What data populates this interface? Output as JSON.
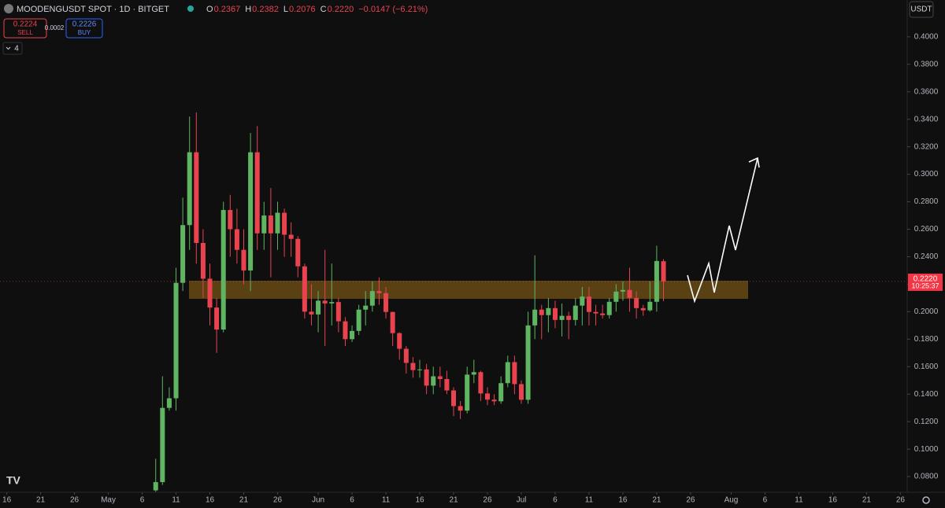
{
  "header": {
    "symbol": "MOODENGUSDT SPOT · 1D · BITGET",
    "ohlc": [
      {
        "key": "O",
        "value": "0.2367"
      },
      {
        "key": "H",
        "value": "0.2382"
      },
      {
        "key": "L",
        "value": "0.2076"
      },
      {
        "key": "C",
        "value": "0.2220"
      }
    ],
    "change": "−0.0147 (−6.21%)",
    "sell_price": "0.2224",
    "sell_label": "SELL",
    "spread": "0.0002",
    "buy_price": "0.2226",
    "buy_label": "BUY",
    "indicators": "4",
    "currency": "USDT"
  },
  "chart_data": {
    "type": "candlestick",
    "up_color": "#5fb562",
    "down_color": "#e8434f",
    "grid": false,
    "x": [
      "05-08",
      "05-09",
      "05-10",
      "05-11",
      "05-12",
      "05-13",
      "05-14",
      "05-15",
      "05-16",
      "05-17",
      "05-18",
      "05-19",
      "05-20",
      "05-21",
      "05-22",
      "05-23",
      "05-24",
      "05-25",
      "05-26",
      "05-27",
      "05-28",
      "05-29",
      "05-30",
      "05-31",
      "06-01",
      "06-02",
      "06-03",
      "06-04",
      "06-05",
      "06-06",
      "06-07",
      "06-08",
      "06-09",
      "06-10",
      "06-11",
      "06-12",
      "06-13",
      "06-14",
      "06-15",
      "06-16",
      "06-17",
      "06-18",
      "06-19",
      "06-20",
      "06-21",
      "06-22",
      "06-23",
      "06-24",
      "06-25",
      "06-26",
      "06-27",
      "06-28",
      "06-29",
      "06-30",
      "07-01",
      "07-02",
      "07-03",
      "07-04",
      "07-05",
      "07-06",
      "07-07",
      "07-08",
      "07-09",
      "07-10",
      "07-11",
      "07-12",
      "07-13",
      "07-14",
      "07-15",
      "07-16",
      "07-17",
      "07-18",
      "07-19",
      "07-20",
      "07-21",
      "07-22"
    ],
    "open": [
      0.07,
      0.076,
      0.13,
      0.137,
      0.221,
      0.263,
      0.316,
      0.25,
      0.224,
      0.203,
      0.187,
      0.274,
      0.26,
      0.245,
      0.23,
      0.316,
      0.257,
      0.27,
      0.257,
      0.272,
      0.256,
      0.253,
      0.233,
      0.2,
      0.198,
      0.208,
      0.206,
      0.207,
      0.193,
      0.18,
      0.186,
      0.2015,
      0.2044,
      0.215,
      0.2135,
      0.1998,
      0.1844,
      0.173,
      0.1627,
      0.1575,
      0.158,
      0.1462,
      0.153,
      0.151,
      0.1427,
      0.1313,
      0.128,
      0.1542,
      0.156,
      0.1405,
      0.136,
      0.1348,
      0.148,
      0.1633,
      0.1473,
      0.1359,
      0.19,
      0.2015,
      0.1975,
      0.2026,
      0.194,
      0.197,
      0.194,
      0.2044,
      0.211,
      0.1998,
      0.1987,
      0.1975,
      0.2072,
      0.2146,
      0.2158,
      0.21,
      0.2026,
      0.201,
      0.2072,
      0.2367
    ],
    "high": [
      0.093,
      0.153,
      0.145,
      0.232,
      0.283,
      0.342,
      0.345,
      0.26,
      0.235,
      0.21,
      0.28,
      0.285,
      0.275,
      0.26,
      0.33,
      0.335,
      0.28,
      0.29,
      0.28,
      0.275,
      0.265,
      0.255,
      0.235,
      0.22,
      0.215,
      0.245,
      0.235,
      0.21,
      0.196,
      0.19,
      0.205,
      0.215,
      0.222,
      0.225,
      0.218,
      0.2,
      0.185,
      0.175,
      0.167,
      0.165,
      0.162,
      0.16,
      0.16,
      0.157,
      0.145,
      0.135,
      0.16,
      0.165,
      0.157,
      0.145,
      0.14,
      0.153,
      0.168,
      0.168,
      0.15,
      0.2,
      0.241,
      0.205,
      0.21,
      0.208,
      0.206,
      0.2,
      0.21,
      0.218,
      0.218,
      0.205,
      0.205,
      0.21,
      0.22,
      0.222,
      0.232,
      0.215,
      0.205,
      0.222,
      0.248,
      0.2382
    ],
    "low": [
      0.069,
      0.074,
      0.128,
      0.128,
      0.215,
      0.245,
      0.235,
      0.21,
      0.19,
      0.17,
      0.185,
      0.24,
      0.235,
      0.22,
      0.215,
      0.245,
      0.245,
      0.225,
      0.245,
      0.24,
      0.24,
      0.225,
      0.195,
      0.19,
      0.185,
      0.175,
      0.19,
      0.185,
      0.175,
      0.178,
      0.183,
      0.19,
      0.2,
      0.205,
      0.195,
      0.175,
      0.165,
      0.155,
      0.152,
      0.152,
      0.14,
      0.14,
      0.145,
      0.14,
      0.124,
      0.122,
      0.126,
      0.148,
      0.135,
      0.132,
      0.132,
      0.133,
      0.145,
      0.14,
      0.133,
      0.133,
      0.18,
      0.18,
      0.185,
      0.188,
      0.182,
      0.18,
      0.19,
      0.19,
      0.19,
      0.19,
      0.195,
      0.195,
      0.2,
      0.208,
      0.2,
      0.195,
      0.197,
      0.2,
      0.2,
      0.2076
    ],
    "close": [
      0.076,
      0.13,
      0.137,
      0.221,
      0.263,
      0.316,
      0.25,
      0.224,
      0.203,
      0.187,
      0.274,
      0.26,
      0.245,
      0.23,
      0.316,
      0.257,
      0.27,
      0.257,
      0.272,
      0.256,
      0.253,
      0.233,
      0.2,
      0.198,
      0.208,
      0.206,
      0.207,
      0.193,
      0.18,
      0.186,
      0.2015,
      0.2044,
      0.215,
      0.2135,
      0.1998,
      0.1844,
      0.173,
      0.1627,
      0.1575,
      0.158,
      0.1462,
      0.153,
      0.151,
      0.1427,
      0.1313,
      0.128,
      0.1542,
      0.156,
      0.1405,
      0.136,
      0.1348,
      0.148,
      0.1633,
      0.1473,
      0.1359,
      0.19,
      0.2015,
      0.1975,
      0.2026,
      0.194,
      0.197,
      0.194,
      0.2044,
      0.211,
      0.1998,
      0.1987,
      0.1975,
      0.2072,
      0.2146,
      0.2158,
      0.21,
      0.2026,
      0.201,
      0.2072,
      0.2369,
      0.222
    ],
    "xlim": [
      "04-15",
      "08-27"
    ],
    "xticks": [
      {
        "value": "04-16",
        "label": "16"
      },
      {
        "value": "04-21",
        "label": "21"
      },
      {
        "value": "04-26",
        "label": "26"
      },
      {
        "value": "05-01",
        "label": "May"
      },
      {
        "value": "05-06",
        "label": "6"
      },
      {
        "value": "05-11",
        "label": "11"
      },
      {
        "value": "05-16",
        "label": "16"
      },
      {
        "value": "05-21",
        "label": "21"
      },
      {
        "value": "05-26",
        "label": "26"
      },
      {
        "value": "06-01",
        "label": "Jun"
      },
      {
        "value": "06-06",
        "label": "6"
      },
      {
        "value": "06-11",
        "label": "11"
      },
      {
        "value": "06-16",
        "label": "16"
      },
      {
        "value": "06-21",
        "label": "21"
      },
      {
        "value": "06-26",
        "label": "26"
      },
      {
        "value": "07-01",
        "label": "Jul"
      },
      {
        "value": "07-06",
        "label": "6"
      },
      {
        "value": "07-11",
        "label": "11"
      },
      {
        "value": "07-16",
        "label": "16"
      },
      {
        "value": "07-21",
        "label": "21"
      },
      {
        "value": "07-26",
        "label": "26"
      },
      {
        "value": "08-01",
        "label": "Aug"
      },
      {
        "value": "08-06",
        "label": "6"
      },
      {
        "value": "08-11",
        "label": "11"
      },
      {
        "value": "08-16",
        "label": "16"
      },
      {
        "value": "08-21",
        "label": "21"
      },
      {
        "value": "08-26",
        "label": "26"
      }
    ],
    "ylim": [
      0.0686,
      0.4268
    ],
    "yticks": [
      {
        "value": 0.08,
        "label": "0.0800"
      },
      {
        "value": 0.1,
        "label": "0.1000"
      },
      {
        "value": 0.12,
        "label": "0.1200"
      },
      {
        "value": 0.14,
        "label": "0.1400"
      },
      {
        "value": 0.16,
        "label": "0.1600"
      },
      {
        "value": 0.18,
        "label": "0.1800"
      },
      {
        "value": 0.2,
        "label": "0.2000"
      },
      {
        "value": 0.22,
        "label": "0.2200"
      },
      {
        "value": 0.24,
        "label": "0.2400"
      },
      {
        "value": 0.26,
        "label": "0.2600"
      },
      {
        "value": 0.28,
        "label": "0.2800"
      },
      {
        "value": 0.3,
        "label": "0.3000"
      },
      {
        "value": 0.32,
        "label": "0.3200"
      },
      {
        "value": 0.34,
        "label": "0.3400"
      },
      {
        "value": 0.36,
        "label": "0.3600"
      },
      {
        "value": 0.38,
        "label": "0.3800"
      },
      {
        "value": 0.4,
        "label": "0.4000"
      }
    ],
    "last_price": {
      "value": 0.222,
      "label": "0.2220",
      "countdown": "10:25:37"
    }
  }
}
